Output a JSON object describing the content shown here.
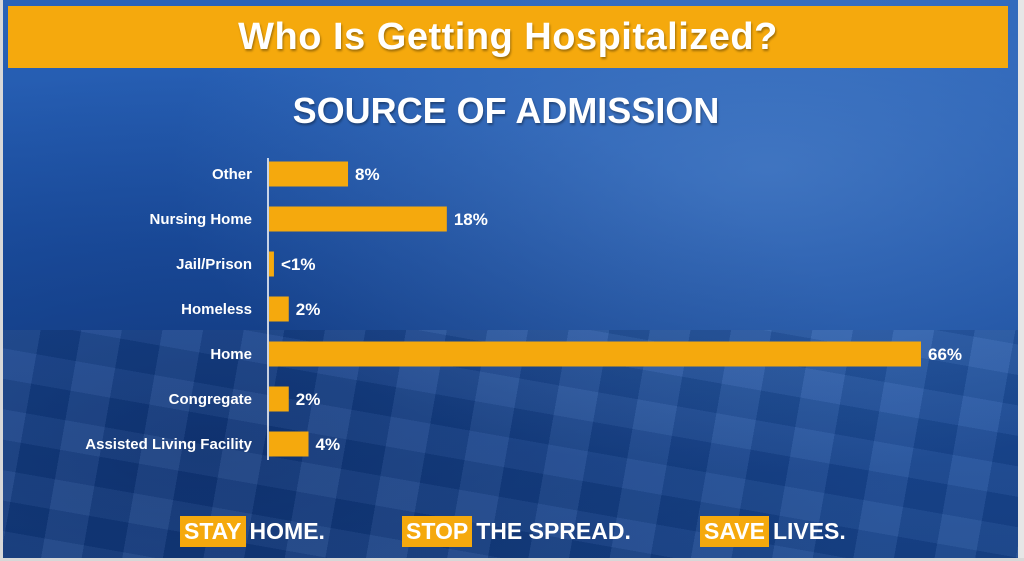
{
  "header": {
    "title": "Who Is Getting Hospitalized?"
  },
  "footer": {
    "slogans": [
      {
        "highlight": "STAY",
        "rest": "HOME."
      },
      {
        "highlight": "STOP",
        "rest": "THE SPREAD."
      },
      {
        "highlight": "SAVE",
        "rest": "LIVES."
      }
    ]
  },
  "colors": {
    "accent": "#f5a90d",
    "background": "#1f55a8",
    "text": "#ffffff"
  },
  "chart_data": {
    "type": "bar",
    "orientation": "horizontal",
    "title": "SOURCE OF ADMISSION",
    "categories": [
      "Other",
      "Nursing Home",
      "Jail/Prison",
      "Homeless",
      "Home",
      "Congregate",
      "Assisted Living Facility"
    ],
    "values": [
      8,
      18,
      0.5,
      2,
      66,
      2,
      4
    ],
    "value_labels": [
      "8%",
      "18%",
      "<1%",
      "2%",
      "66%",
      "2%",
      "4%"
    ],
    "xlim": [
      0,
      66
    ],
    "grid": false,
    "legend": "none"
  }
}
